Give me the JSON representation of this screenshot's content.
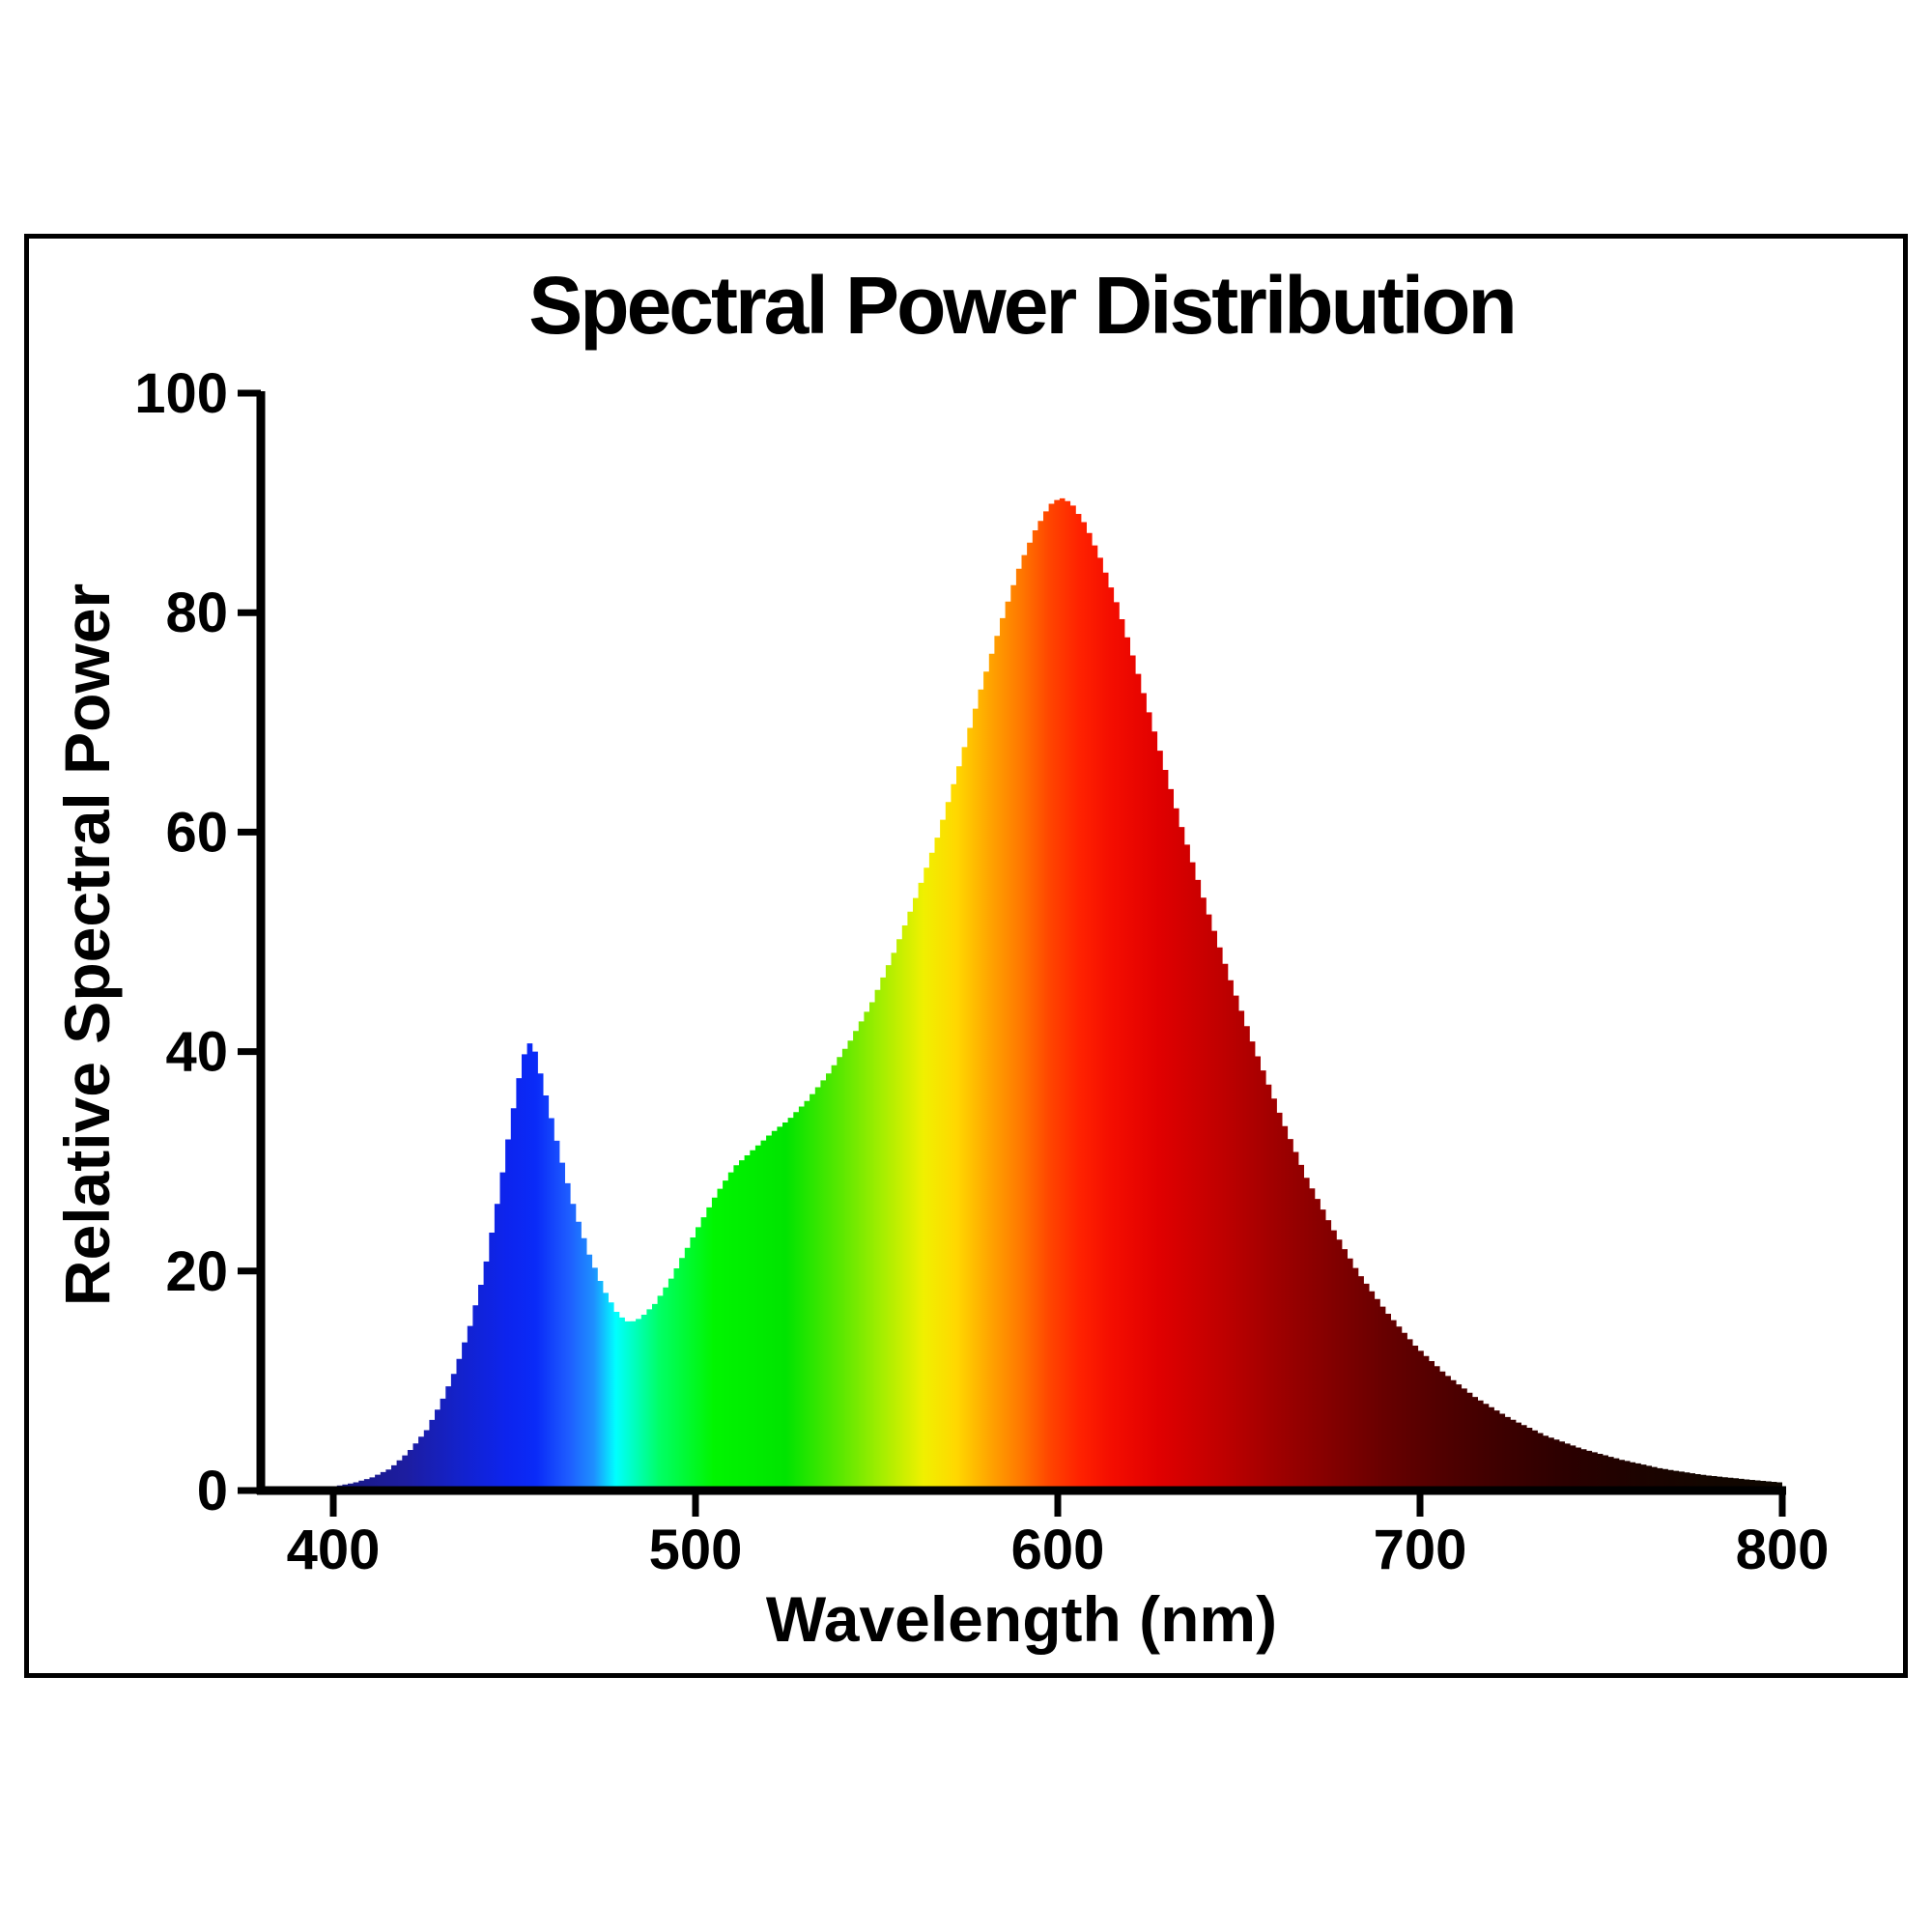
{
  "page": {
    "background": "#ffffff",
    "frame_border_color": "#000000",
    "text_color": "#000000"
  },
  "chart": {
    "title": "Spectral Power Distribution",
    "x_axis_label": "Wavelength (nm)",
    "y_axis_label": "Relative Spectral Power",
    "axis_color": "#000000"
  },
  "chart_data": {
    "type": "area",
    "title": "Spectral Power Distribution",
    "xlabel": "Wavelength (nm)",
    "ylabel": "Relative Spectral Power",
    "xlim": [
      380,
      800
    ],
    "ylim": [
      0,
      100
    ],
    "x_ticks": [
      400,
      500,
      600,
      700,
      800
    ],
    "y_ticks": [
      0,
      20,
      40,
      60,
      80,
      100
    ],
    "grid": false,
    "legend": false,
    "series": [
      {
        "name": "Relative spectral power",
        "x": [
          380,
          390,
          400,
          405,
          410,
          415,
          420,
          425,
          429,
          433,
          437,
          441,
          445,
          448,
          451,
          453,
          455,
          458,
          462,
          466,
          470,
          474,
          478,
          481,
          484,
          488,
          492,
          496,
          500,
          505,
          510,
          515,
          520,
          525,
          530,
          536,
          542,
          548,
          554,
          560,
          566,
          572,
          578,
          584,
          589,
          593,
          597,
          600,
          603,
          607,
          611,
          616,
          621,
          627,
          633,
          640,
          647,
          654,
          661,
          668,
          675,
          682,
          690,
          698,
          706,
          715,
          724,
          734,
          744,
          755,
          766,
          778,
          790,
          800
        ],
        "y": [
          0,
          0.2,
          0.4,
          0.7,
          1.2,
          2,
          3.5,
          5.5,
          8,
          11,
          15,
          20,
          27,
          33,
          38.5,
          41,
          40,
          36,
          30.5,
          25.5,
          21.5,
          18.3,
          16,
          15.3,
          15.7,
          17,
          19,
          21.5,
          24,
          27,
          29.5,
          31,
          32.5,
          33.8,
          35.5,
          38,
          41,
          44.5,
          49,
          54,
          59.5,
          66,
          73,
          79.5,
          84.5,
          87.5,
          89.8,
          90.5,
          90,
          88,
          85,
          80.5,
          75,
          68,
          61,
          53.5,
          46.5,
          40,
          34,
          28.5,
          24,
          20,
          16.3,
          13.2,
          10.7,
          8.4,
          6.6,
          5,
          3.8,
          2.8,
          2,
          1.4,
          1,
          0.7
        ]
      }
    ],
    "features": {
      "blue_peak": {
        "wavelength": 452,
        "value": 41
      },
      "dip": {
        "wavelength": 480,
        "value": 15.3
      },
      "main_peak": {
        "wavelength": 600,
        "value": 90.5
      }
    },
    "fill": "spectral-gradient-by-wavelength",
    "gradient_stops": [
      {
        "wavelength": 380,
        "color": "#14145f"
      },
      {
        "wavelength": 400,
        "color": "#191980"
      },
      {
        "wavelength": 420,
        "color": "#1d1da0"
      },
      {
        "wavelength": 435,
        "color": "#1322cc"
      },
      {
        "wavelength": 448,
        "color": "#0d24ee"
      },
      {
        "wavelength": 456,
        "color": "#0a2bf8"
      },
      {
        "wavelength": 465,
        "color": "#1e5dff"
      },
      {
        "wavelength": 472,
        "color": "#1e90ff"
      },
      {
        "wavelength": 478,
        "color": "#00ffff"
      },
      {
        "wavelength": 490,
        "color": "#00ff66"
      },
      {
        "wavelength": 505,
        "color": "#00f500"
      },
      {
        "wavelength": 525,
        "color": "#00e400"
      },
      {
        "wavelength": 540,
        "color": "#5ae800"
      },
      {
        "wavelength": 552,
        "color": "#a8ee00"
      },
      {
        "wavelength": 563,
        "color": "#f0f000"
      },
      {
        "wavelength": 572,
        "color": "#ffd800"
      },
      {
        "wavelength": 582,
        "color": "#ffa000"
      },
      {
        "wavelength": 590,
        "color": "#ff7700"
      },
      {
        "wavelength": 598,
        "color": "#ff4400"
      },
      {
        "wavelength": 606,
        "color": "#ff2200"
      },
      {
        "wavelength": 615,
        "color": "#f40d00"
      },
      {
        "wavelength": 628,
        "color": "#e00000"
      },
      {
        "wavelength": 645,
        "color": "#c00000"
      },
      {
        "wavelength": 660,
        "color": "#a00000"
      },
      {
        "wavelength": 675,
        "color": "#840000"
      },
      {
        "wavelength": 690,
        "color": "#680000"
      },
      {
        "wavelength": 705,
        "color": "#520000"
      },
      {
        "wavelength": 720,
        "color": "#400000"
      },
      {
        "wavelength": 740,
        "color": "#2c0000"
      },
      {
        "wavelength": 760,
        "color": "#1d0300"
      },
      {
        "wavelength": 780,
        "color": "#130600"
      },
      {
        "wavelength": 800,
        "color": "#0d0700"
      }
    ]
  }
}
